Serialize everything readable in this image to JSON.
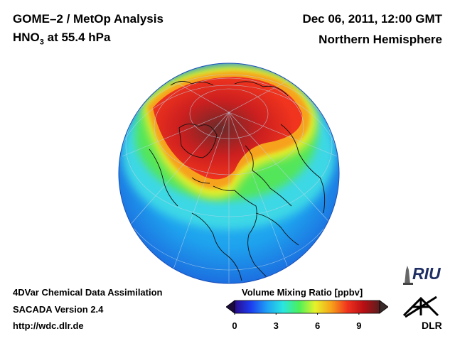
{
  "header": {
    "title": "GOME–2 / MetOp Analysis",
    "species_prefix": "HNO",
    "species_sub": "3",
    "species_suffix": " at 55.4 hPa",
    "datetime": "Dec 06, 2011, 12:00 GMT",
    "region": "Northern Hemisphere"
  },
  "footer": {
    "method": "4DVar Chemical Data Assimilation",
    "version": "SACADA Version 2.4",
    "url": "http://wdc.dlr.de"
  },
  "colorbar": {
    "title": "Volume Mixing Ratio [ppbv]",
    "ticks": [
      "0",
      "3",
      "6",
      "9"
    ],
    "range": [
      0,
      10.5
    ],
    "colors": [
      "#2a0a8a",
      "#1c3cf0",
      "#1fa0f5",
      "#29e6e0",
      "#4cf05a",
      "#e6f22a",
      "#f7a21a",
      "#f0321e",
      "#b80f14",
      "#5a1e1e"
    ]
  },
  "logos": {
    "riu": "RIU",
    "dlr": "DLR"
  },
  "icons": {
    "riu_logo": "riu-tower-icon",
    "dlr_logo": "dlr-cross-icon"
  }
}
